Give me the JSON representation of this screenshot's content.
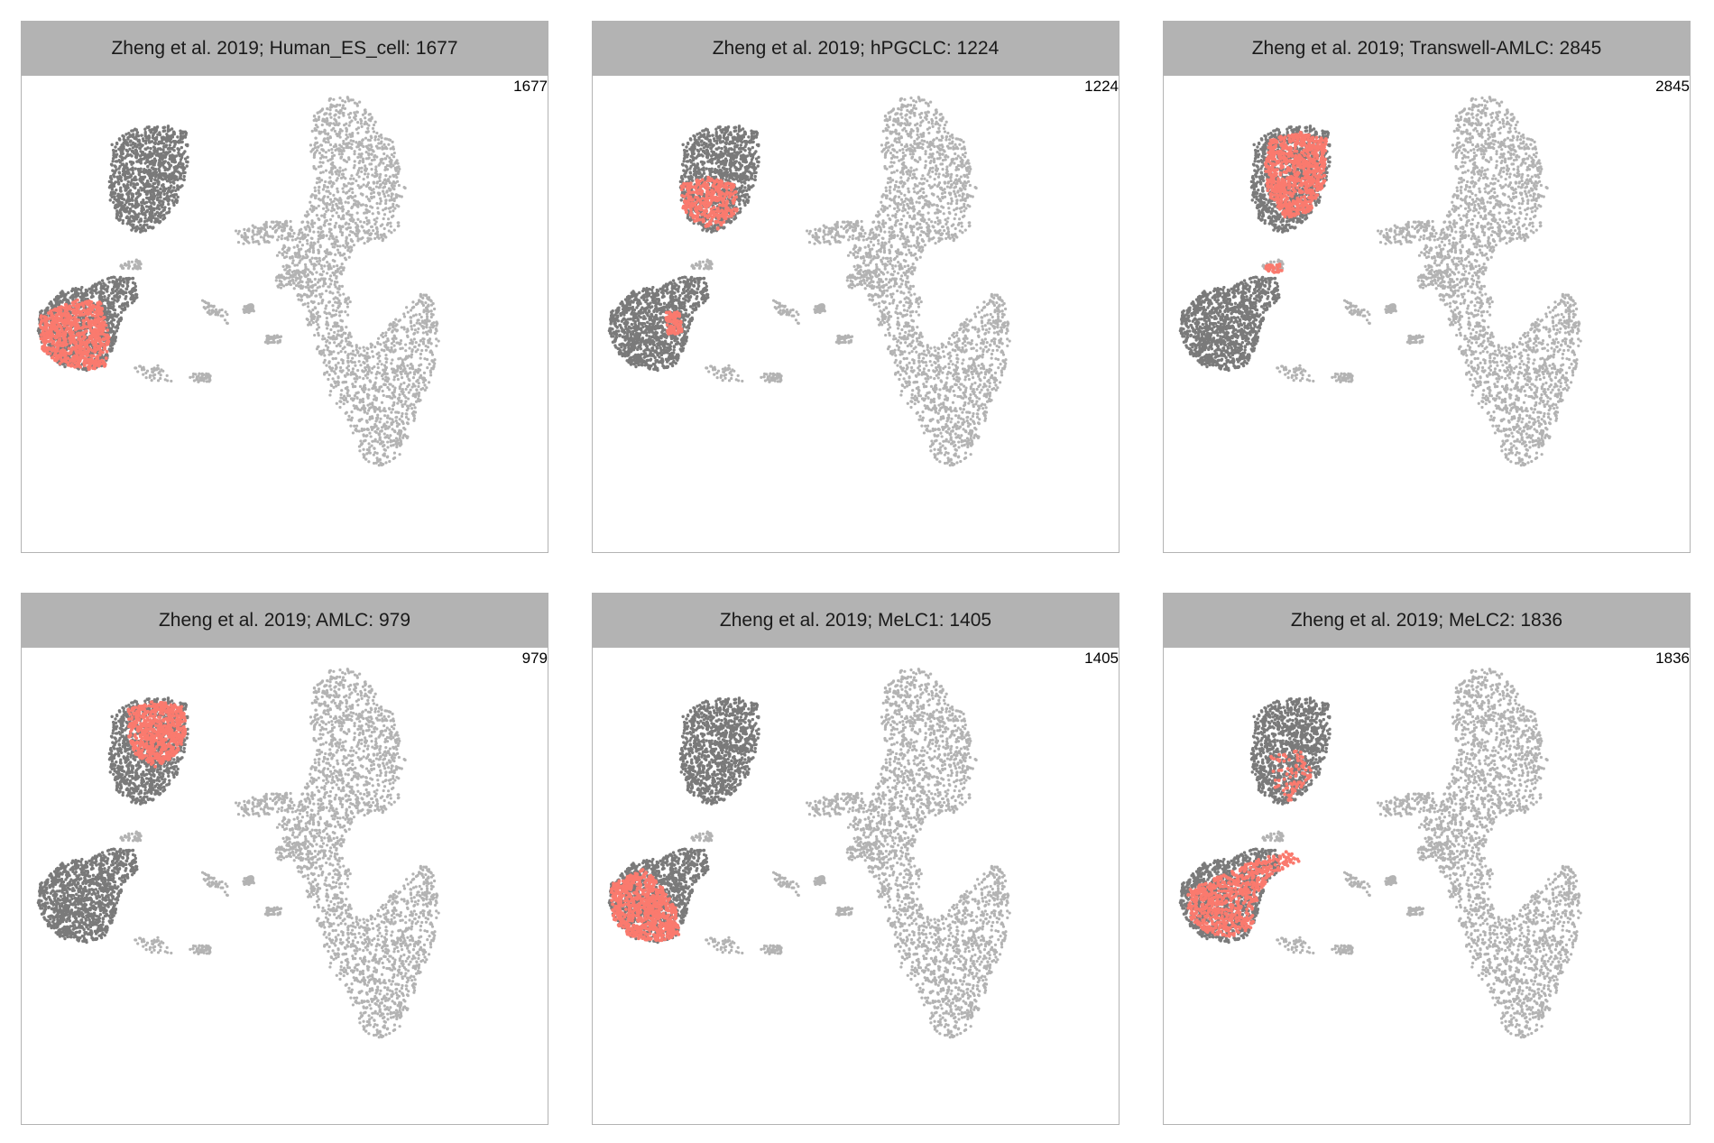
{
  "chart_data": [
    {
      "type": "scatter",
      "title": "Zheng et al. 2019; Human_ES_cell: 1677",
      "count_label": "1677",
      "highlight": [
        "bl"
      ]
    },
    {
      "type": "scatter",
      "title": "Zheng et al. 2019; hPGCLC: 1224",
      "count_label": "1224",
      "highlight": [
        "tl_bottom",
        "bl_spot"
      ]
    },
    {
      "type": "scatter",
      "title": "Zheng et al. 2019; Transwell-AMLC: 2845",
      "count_label": "2845",
      "highlight": [
        "tl_main",
        "bridge_spot"
      ]
    },
    {
      "type": "scatter",
      "title": "Zheng et al. 2019; AMLC: 979",
      "count_label": "979",
      "highlight": [
        "tl_top"
      ]
    },
    {
      "type": "scatter",
      "title": "Zheng et al. 2019; MeLC1: 1405",
      "count_label": "1405",
      "highlight": [
        "bl_left"
      ]
    },
    {
      "type": "scatter",
      "title": "Zheng et al. 2019; MeLC2: 1836",
      "count_label": "1836",
      "highlight": [
        "bl_upper",
        "tl_sparse"
      ]
    }
  ],
  "colors": {
    "background_points": "#b3b3b3",
    "group_points": "#7a7a7a",
    "highlight_points": "#fa7a6e",
    "strip": "#b3b3b3"
  }
}
